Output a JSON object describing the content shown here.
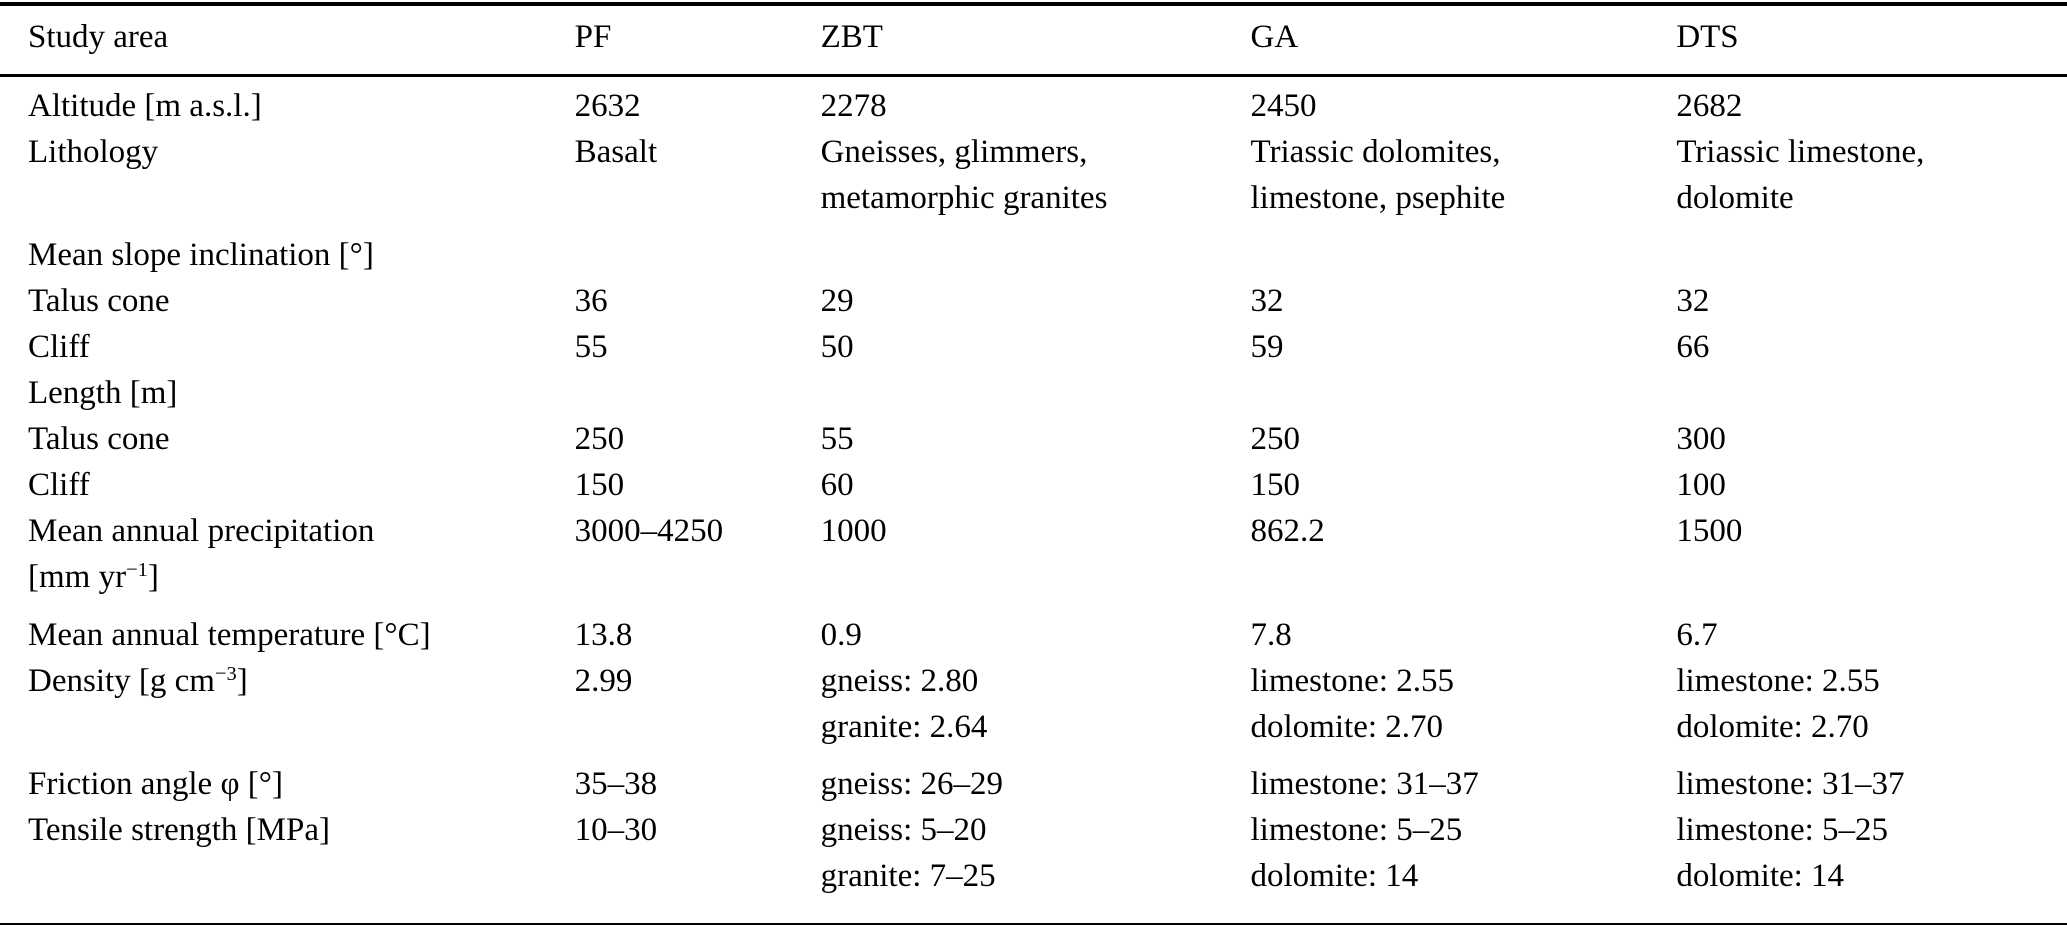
{
  "page": {
    "background_color": "#ffffff",
    "text_color": "#000000",
    "rule_color": "#000000"
  },
  "table": {
    "columns": [
      "Study area",
      "PF",
      "ZBT",
      "GA",
      "DTS"
    ],
    "rows": [
      {
        "label": "Altitude [m a.s.l.]",
        "values": [
          "2632",
          "2278",
          "2450",
          "2682"
        ]
      },
      {
        "label": "Lithology",
        "values": [
          "Basalt",
          "Gneisses, glimmers,\nmetamorphic granites",
          "Triassic dolomites,\nlimestone, psephite",
          "Triassic limestone,\ndolomite"
        ]
      },
      {
        "label": "Mean slope inclination [°]",
        "values": [
          "",
          "",
          "",
          ""
        ]
      },
      {
        "label": "Talus cone",
        "values": [
          "36",
          "29",
          "32",
          "32"
        ]
      },
      {
        "label": "Cliff",
        "values": [
          "55",
          "50",
          "59",
          "66"
        ]
      },
      {
        "label": "Length [m]",
        "values": [
          "",
          "",
          "",
          ""
        ]
      },
      {
        "label": "Talus cone",
        "values": [
          "250",
          "55",
          "250",
          "300"
        ]
      },
      {
        "label": "Cliff",
        "values": [
          "150",
          "60",
          "150",
          "100"
        ]
      },
      {
        "label": "Mean annual precipitation\n[mm yr^{−1}]",
        "values": [
          "3000–4250",
          "1000",
          "862.2",
          "1500"
        ]
      },
      {
        "label": "Mean annual temperature [°C]",
        "values": [
          "13.8",
          "0.9",
          "7.8",
          "6.7"
        ]
      },
      {
        "label": "Density [g cm^{−3}]",
        "values": [
          "2.99",
          "gneiss: 2.80\ngranite: 2.64",
          "limestone: 2.55\ndolomite: 2.70",
          "limestone: 2.55\ndolomite: 2.70"
        ]
      },
      {
        "label": "Friction angle φ [°]",
        "values": [
          "35–38",
          "gneiss: 26–29",
          "limestone: 31–37",
          "limestone: 31–37"
        ]
      },
      {
        "label": "Tensile strength [MPa]",
        "values": [
          "10–30",
          "gneiss: 5–20\ngranite: 7–25",
          "limestone: 5–25\ndolomite: 14",
          "limestone: 5–25\ndolomite: 14"
        ]
      }
    ]
  }
}
